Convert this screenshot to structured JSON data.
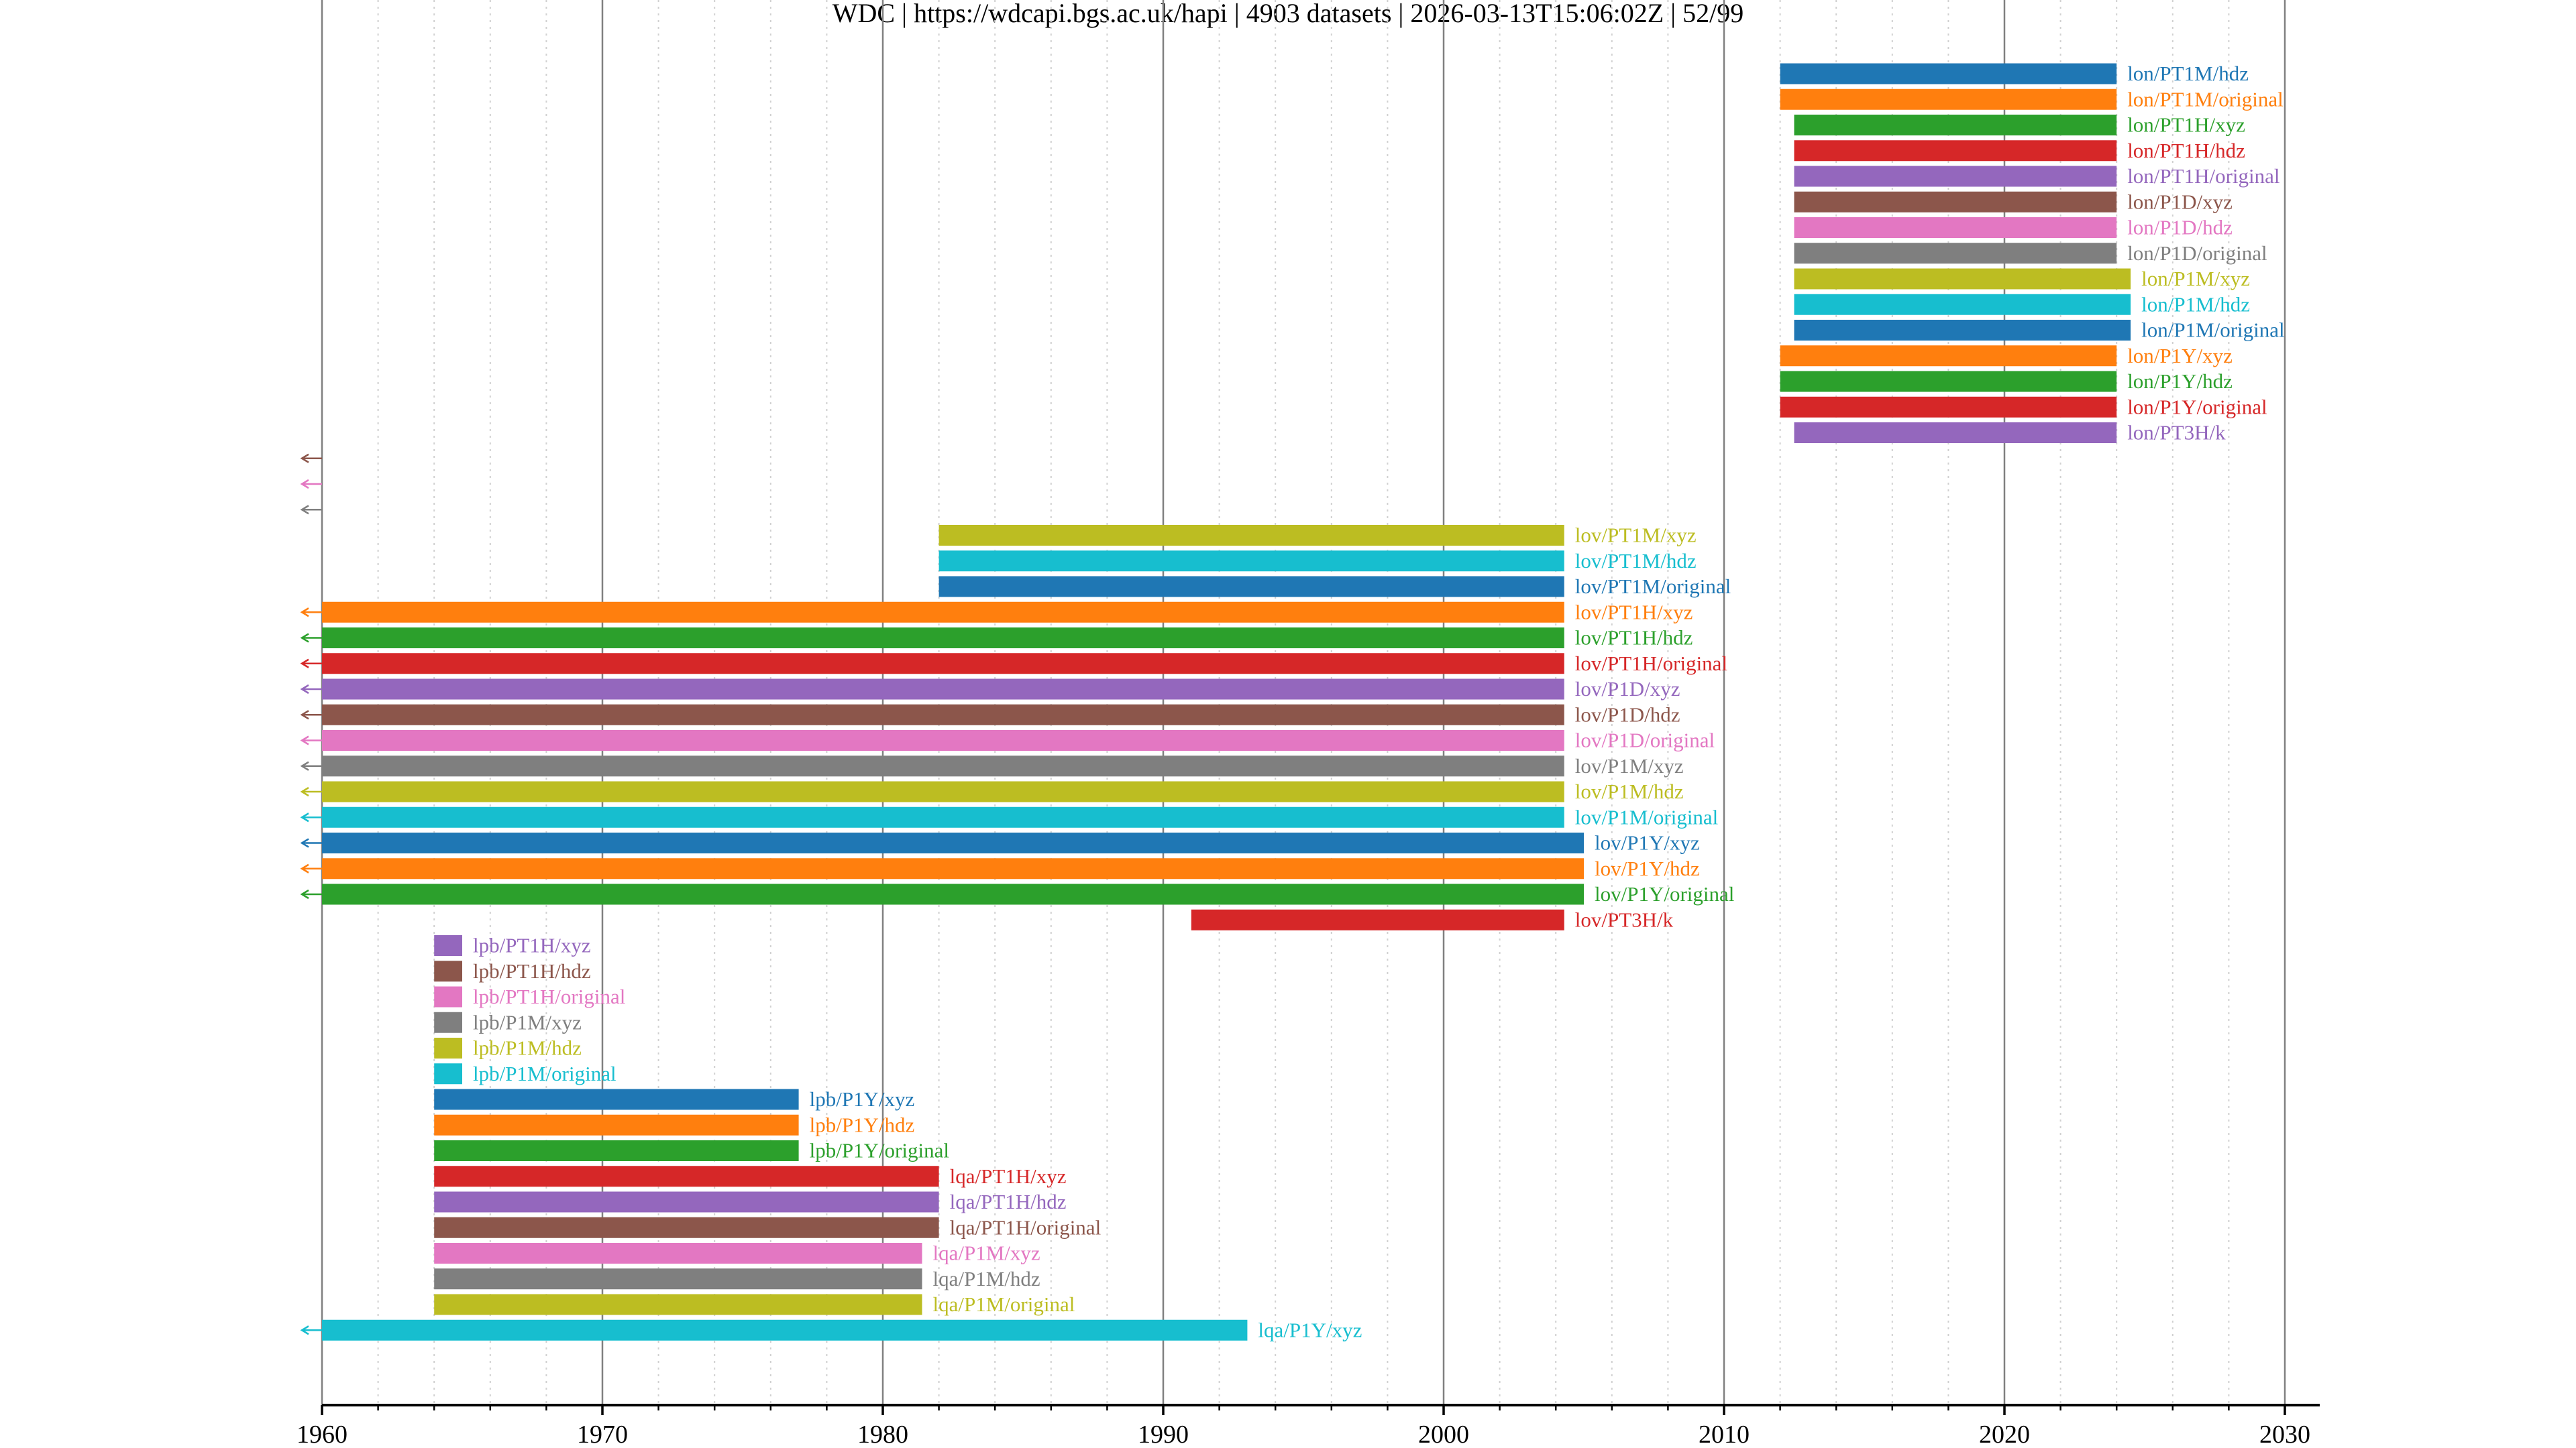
{
  "chart_data": {
    "type": "bar",
    "orientation": "horizontal-timeline",
    "title": "WDC | https://wdcapi.bgs.ac.uk/hapi | 4903 datasets | 2026-03-13T15:06:02Z | 52/99",
    "xlabel": "",
    "ylabel": "",
    "xlim": [
      1960,
      2031
    ],
    "x_ticks": [
      1960,
      1970,
      1980,
      1990,
      2000,
      2010,
      2020,
      2030
    ],
    "x_tick_labels": [
      "1960",
      "1970",
      "1980",
      "1990",
      "2000",
      "2010",
      "2020",
      "2030"
    ],
    "x_minor_step": 2,
    "grid": true,
    "legend": "inline labels right of bars",
    "colors": [
      "#1f77b4",
      "#ff7f0e",
      "#2ca02c",
      "#d62728",
      "#9467bd",
      "#8c564b",
      "#e377c2",
      "#7f7f7f",
      "#bcbd22",
      "#17becf"
    ],
    "datasets": [
      {
        "label": "lon/PT1M/hdz",
        "start": 2012.0,
        "end": 2024.0
      },
      {
        "label": "lon/PT1M/original",
        "start": 2012.0,
        "end": 2024.0
      },
      {
        "label": "lon/PT1H/xyz",
        "start": 2012.5,
        "end": 2024.0
      },
      {
        "label": "lon/PT1H/hdz",
        "start": 2012.5,
        "end": 2024.0
      },
      {
        "label": "lon/PT1H/original",
        "start": 2012.5,
        "end": 2024.0
      },
      {
        "label": "lon/P1D/xyz",
        "start": 2012.5,
        "end": 2024.0
      },
      {
        "label": "lon/P1D/hdz",
        "start": 2012.5,
        "end": 2024.0
      },
      {
        "label": "lon/P1D/original",
        "start": 2012.5,
        "end": 2024.0
      },
      {
        "label": "lon/P1M/xyz",
        "start": 2012.5,
        "end": 2024.5
      },
      {
        "label": "lon/P1M/hdz",
        "start": 2012.5,
        "end": 2024.5
      },
      {
        "label": "lon/P1M/original",
        "start": 2012.5,
        "end": 2024.5
      },
      {
        "label": "lon/P1Y/xyz",
        "start": 2012.0,
        "end": 2024.0
      },
      {
        "label": "lon/P1Y/hdz",
        "start": 2012.0,
        "end": 2024.0
      },
      {
        "label": "lon/P1Y/original",
        "start": 2012.0,
        "end": 2024.0
      },
      {
        "label": "lon/PT3H/k",
        "start": 2012.5,
        "end": 2024.0
      },
      {
        "label": "",
        "start": null,
        "end": null,
        "before_range": true
      },
      {
        "label": "",
        "start": null,
        "end": null,
        "before_range": true
      },
      {
        "label": "",
        "start": null,
        "end": null,
        "before_range": true
      },
      {
        "label": "lov/PT1M/xyz",
        "start": 1982.0,
        "end": 2004.3
      },
      {
        "label": "lov/PT1M/hdz",
        "start": 1982.0,
        "end": 2004.3
      },
      {
        "label": "lov/PT1M/original",
        "start": 1982.0,
        "end": 2004.3
      },
      {
        "label": "lov/PT1H/xyz",
        "start": 1960,
        "end": 2004.3,
        "continues_before": true
      },
      {
        "label": "lov/PT1H/hdz",
        "start": 1960,
        "end": 2004.3,
        "continues_before": true
      },
      {
        "label": "lov/PT1H/original",
        "start": 1960,
        "end": 2004.3,
        "continues_before": true
      },
      {
        "label": "lov/P1D/xyz",
        "start": 1960,
        "end": 2004.3,
        "continues_before": true
      },
      {
        "label": "lov/P1D/hdz",
        "start": 1960,
        "end": 2004.3,
        "continues_before": true
      },
      {
        "label": "lov/P1D/original",
        "start": 1960,
        "end": 2004.3,
        "continues_before": true
      },
      {
        "label": "lov/P1M/xyz",
        "start": 1960,
        "end": 2004.3,
        "continues_before": true
      },
      {
        "label": "lov/P1M/hdz",
        "start": 1960,
        "end": 2004.3,
        "continues_before": true
      },
      {
        "label": "lov/P1M/original",
        "start": 1960,
        "end": 2004.3,
        "continues_before": true
      },
      {
        "label": "lov/P1Y/xyz",
        "start": 1960,
        "end": 2005.0,
        "continues_before": true
      },
      {
        "label": "lov/P1Y/hdz",
        "start": 1960,
        "end": 2005.0,
        "continues_before": true
      },
      {
        "label": "lov/P1Y/original",
        "start": 1960,
        "end": 2005.0,
        "continues_before": true
      },
      {
        "label": "lov/PT3H/k",
        "start": 1991.0,
        "end": 2004.3
      },
      {
        "label": "lpb/PT1H/xyz",
        "start": 1964.0,
        "end": 1965.0
      },
      {
        "label": "lpb/PT1H/hdz",
        "start": 1964.0,
        "end": 1965.0
      },
      {
        "label": "lpb/PT1H/original",
        "start": 1964.0,
        "end": 1965.0
      },
      {
        "label": "lpb/P1M/xyz",
        "start": 1964.0,
        "end": 1965.0
      },
      {
        "label": "lpb/P1M/hdz",
        "start": 1964.0,
        "end": 1965.0
      },
      {
        "label": "lpb/P1M/original",
        "start": 1964.0,
        "end": 1965.0
      },
      {
        "label": "lpb/P1Y/xyz",
        "start": 1964.0,
        "end": 1977.0
      },
      {
        "label": "lpb/P1Y/hdz",
        "start": 1964.0,
        "end": 1977.0
      },
      {
        "label": "lpb/P1Y/original",
        "start": 1964.0,
        "end": 1977.0
      },
      {
        "label": "lqa/PT1H/xyz",
        "start": 1964.0,
        "end": 1982.0
      },
      {
        "label": "lqa/PT1H/hdz",
        "start": 1964.0,
        "end": 1982.0
      },
      {
        "label": "lqa/PT1H/original",
        "start": 1964.0,
        "end": 1982.0
      },
      {
        "label": "lqa/P1M/xyz",
        "start": 1964.0,
        "end": 1981.4
      },
      {
        "label": "lqa/P1M/hdz",
        "start": 1964.0,
        "end": 1981.4
      },
      {
        "label": "lqa/P1M/original",
        "start": 1964.0,
        "end": 1981.4
      },
      {
        "label": "lqa/P1Y/xyz",
        "start": 1960,
        "end": 1993.0,
        "continues_before": true
      }
    ]
  }
}
